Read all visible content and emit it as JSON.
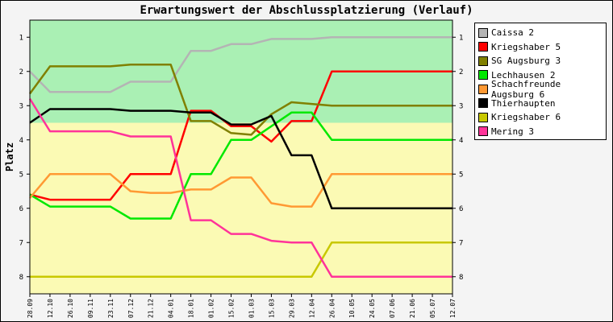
{
  "chart_data": {
    "type": "line",
    "title": "Erwartungswert der Abschlussplatzierung (Verlauf)",
    "ylabel": "Platz",
    "xlabel": "",
    "ylim": [
      0.5,
      8.5
    ],
    "y_inverted": true,
    "y_ticks": [
      "1",
      "2",
      "3",
      "4",
      "5",
      "6",
      "7",
      "8"
    ],
    "x": [
      "28.09",
      "12.10",
      "26.10",
      "09.11",
      "23.11",
      "07.12",
      "21.12",
      "04.01",
      "18.01",
      "01.02",
      "15.02",
      "01.03",
      "15.03",
      "29.03",
      "12.04",
      "26.04",
      "10.05",
      "24.05",
      "07.06",
      "21.06",
      "05.07",
      "12.07"
    ],
    "bands": [
      {
        "from": 0.5,
        "to": 3.5,
        "color": "#aaf0b4"
      },
      {
        "from": 3.5,
        "to": 8.5,
        "color": "#fbfab4"
      }
    ],
    "grid": false,
    "legend_position": "right",
    "series": [
      {
        "name": "Caissa 2",
        "color": "#b4b4b4",
        "values": [
          2.0,
          2.6,
          2.6,
          2.6,
          2.6,
          2.3,
          2.3,
          2.3,
          1.4,
          1.4,
          1.2,
          1.2,
          1.05,
          1.05,
          1.05,
          1.0,
          1.0,
          1.0,
          1.0,
          1.0,
          1.0,
          1.0
        ]
      },
      {
        "name": "Kriegshaber 5",
        "color": "#ff0000",
        "values": [
          5.6,
          5.75,
          5.75,
          5.75,
          5.75,
          5.0,
          5.0,
          5.0,
          3.15,
          3.15,
          3.6,
          3.6,
          4.05,
          3.45,
          3.45,
          2.0,
          2.0,
          2.0,
          2.0,
          2.0,
          2.0,
          2.0
        ]
      },
      {
        "name": "SG Augsburg 3",
        "color": "#808000",
        "values": [
          2.65,
          1.85,
          1.85,
          1.85,
          1.85,
          1.8,
          1.8,
          1.8,
          3.45,
          3.45,
          3.8,
          3.85,
          3.25,
          2.9,
          2.95,
          3.0,
          3.0,
          3.0,
          3.0,
          3.0,
          3.0,
          3.0
        ]
      },
      {
        "name": "Lechhausen 2",
        "color": "#00e800",
        "values": [
          5.6,
          5.95,
          5.95,
          5.95,
          5.95,
          6.3,
          6.3,
          6.3,
          5.0,
          5.0,
          4.0,
          4.0,
          3.6,
          3.2,
          3.2,
          4.0,
          4.0,
          4.0,
          4.0,
          4.0,
          4.0,
          4.0
        ]
      },
      {
        "name": "Schachfreunde Augsburg 6",
        "color": "#ff9933",
        "values": [
          5.7,
          5.0,
          5.0,
          5.0,
          5.0,
          5.5,
          5.55,
          5.55,
          5.45,
          5.45,
          5.1,
          5.1,
          5.85,
          5.95,
          5.95,
          5.0,
          5.0,
          5.0,
          5.0,
          5.0,
          5.0,
          5.0
        ]
      },
      {
        "name": "Thierhaupten",
        "color": "#000000",
        "values": [
          3.5,
          3.1,
          3.1,
          3.1,
          3.1,
          3.15,
          3.15,
          3.15,
          3.2,
          3.2,
          3.55,
          3.55,
          3.3,
          4.45,
          4.45,
          6.0,
          6.0,
          6.0,
          6.0,
          6.0,
          6.0,
          6.0
        ]
      },
      {
        "name": "Kriegshaber 6",
        "color": "#c8c800",
        "values": [
          8.0,
          8.0,
          8.0,
          8.0,
          8.0,
          8.0,
          8.0,
          8.0,
          8.0,
          8.0,
          8.0,
          8.0,
          8.0,
          8.0,
          8.0,
          7.0,
          7.0,
          7.0,
          7.0,
          7.0,
          7.0,
          7.0
        ]
      },
      {
        "name": "Mering 3",
        "color": "#ff3399",
        "values": [
          2.8,
          3.75,
          3.75,
          3.75,
          3.75,
          3.9,
          3.9,
          3.9,
          6.35,
          6.35,
          6.75,
          6.75,
          6.95,
          7.0,
          7.0,
          8.0,
          8.0,
          8.0,
          8.0,
          8.0,
          8.0,
          8.0
        ]
      }
    ]
  }
}
